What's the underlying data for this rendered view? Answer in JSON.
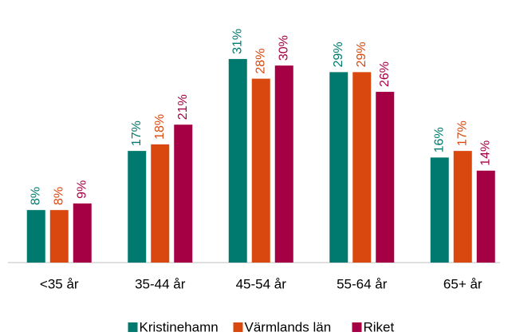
{
  "chart_data": {
    "type": "bar",
    "categories": [
      "<35 år",
      "35-44 år",
      "45-54 år",
      "55-64 år",
      "65+ år"
    ],
    "series": [
      {
        "name": "Kristinehamn",
        "color": "#007a6e",
        "values": [
          8,
          17,
          31,
          29,
          16
        ],
        "value_labels": [
          "8%",
          "17%",
          "31%",
          "29%",
          "16%"
        ]
      },
      {
        "name": "Värmlands län",
        "color": "#d9480f",
        "values": [
          8,
          18,
          28,
          29,
          17
        ],
        "value_labels": [
          "8%",
          "18%",
          "28%",
          "29%",
          "17%"
        ]
      },
      {
        "name": "Riket",
        "color": "#a50044",
        "values": [
          9,
          21,
          30,
          26,
          14
        ],
        "value_labels": [
          "9%",
          "21%",
          "30%",
          "26%",
          "14%"
        ]
      }
    ],
    "ylim": [
      0,
      35
    ],
    "legend": "bottom"
  }
}
